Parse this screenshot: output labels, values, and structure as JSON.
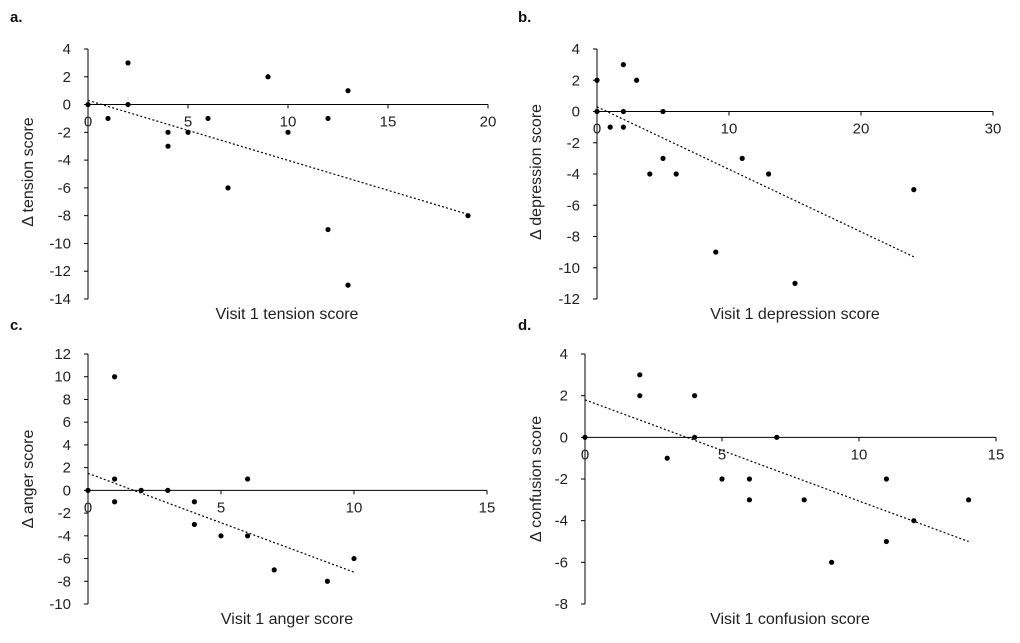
{
  "chart_data": [
    {
      "type": "scatter",
      "panel": "a.",
      "title": "",
      "xlabel": "Visit 1 tension score",
      "ylabel": "Δ tension score",
      "xlim": [
        0,
        20
      ],
      "ylim": [
        -14,
        4
      ],
      "xticks": [
        0,
        5,
        10,
        15,
        20
      ],
      "yticks": [
        4,
        2,
        0,
        -2,
        -4,
        -6,
        -8,
        -10,
        -12,
        -14
      ],
      "points": [
        [
          0,
          0
        ],
        [
          1,
          -1
        ],
        [
          2,
          3
        ],
        [
          2,
          0
        ],
        [
          4,
          -2
        ],
        [
          4,
          -3
        ],
        [
          5,
          -2
        ],
        [
          6,
          -1
        ],
        [
          7,
          -6
        ],
        [
          9,
          2
        ],
        [
          10,
          -2
        ],
        [
          12,
          -1
        ],
        [
          12,
          -9
        ],
        [
          13,
          1
        ],
        [
          13,
          -13
        ],
        [
          19,
          -8
        ]
      ],
      "trendline": [
        [
          0,
          0.3
        ],
        [
          19,
          -7.9
        ]
      ]
    },
    {
      "type": "scatter",
      "panel": "b.",
      "title": "",
      "xlabel": "Visit 1 depression score",
      "ylabel": "Δ depression score",
      "xlim": [
        0,
        30
      ],
      "ylim": [
        -12,
        4
      ],
      "xticks": [
        0,
        10,
        20,
        30
      ],
      "yticks": [
        4,
        2,
        0,
        -2,
        -4,
        -6,
        -8,
        -10,
        -12
      ],
      "points": [
        [
          0,
          2
        ],
        [
          0,
          0
        ],
        [
          1,
          -1
        ],
        [
          2,
          3
        ],
        [
          2,
          0
        ],
        [
          2,
          -1
        ],
        [
          3,
          2
        ],
        [
          4,
          -4
        ],
        [
          5,
          0
        ],
        [
          5,
          -3
        ],
        [
          6,
          -4
        ],
        [
          9,
          -9
        ],
        [
          11,
          -3
        ],
        [
          13,
          -4
        ],
        [
          15,
          -11
        ],
        [
          24,
          -5
        ]
      ],
      "trendline": [
        [
          0,
          0.3
        ],
        [
          24,
          -9.3
        ]
      ]
    },
    {
      "type": "scatter",
      "panel": "c.",
      "title": "",
      "xlabel": "Visit 1 anger score",
      "ylabel": "Δ anger score",
      "xlim": [
        0,
        15
      ],
      "ylim": [
        -10,
        12
      ],
      "xticks": [
        0,
        5,
        10,
        15
      ],
      "yticks": [
        12,
        10,
        8,
        6,
        4,
        2,
        0,
        -2,
        -4,
        -6,
        -8,
        -10
      ],
      "points": [
        [
          0,
          0
        ],
        [
          1,
          10
        ],
        [
          1,
          1
        ],
        [
          1,
          -1
        ],
        [
          2,
          0
        ],
        [
          3,
          0
        ],
        [
          4,
          -1
        ],
        [
          4,
          -3
        ],
        [
          5,
          -4
        ],
        [
          6,
          1
        ],
        [
          6,
          -4
        ],
        [
          7,
          -7
        ],
        [
          9,
          -8
        ],
        [
          10,
          -6
        ]
      ],
      "trendline": [
        [
          0,
          1.5
        ],
        [
          10,
          -7.2
        ]
      ]
    },
    {
      "type": "scatter",
      "panel": "d.",
      "title": "",
      "xlabel": "Visit 1 confusion score",
      "ylabel": "Δ confusion score",
      "xlim": [
        0,
        15
      ],
      "ylim": [
        -8,
        4
      ],
      "xticks": [
        0,
        5,
        10,
        15
      ],
      "yticks": [
        4,
        2,
        0,
        -2,
        -4,
        -6,
        -8
      ],
      "points": [
        [
          0,
          0
        ],
        [
          2,
          3
        ],
        [
          2,
          2
        ],
        [
          3,
          -1
        ],
        [
          4,
          2
        ],
        [
          4,
          0
        ],
        [
          5,
          -2
        ],
        [
          6,
          -2
        ],
        [
          6,
          -3
        ],
        [
          7,
          0
        ],
        [
          8,
          -3
        ],
        [
          9,
          -6
        ],
        [
          11,
          -2
        ],
        [
          11,
          -5
        ],
        [
          12,
          -4
        ],
        [
          14,
          -3
        ]
      ],
      "trendline": [
        [
          0,
          1.8
        ],
        [
          14,
          -5
        ]
      ]
    }
  ]
}
